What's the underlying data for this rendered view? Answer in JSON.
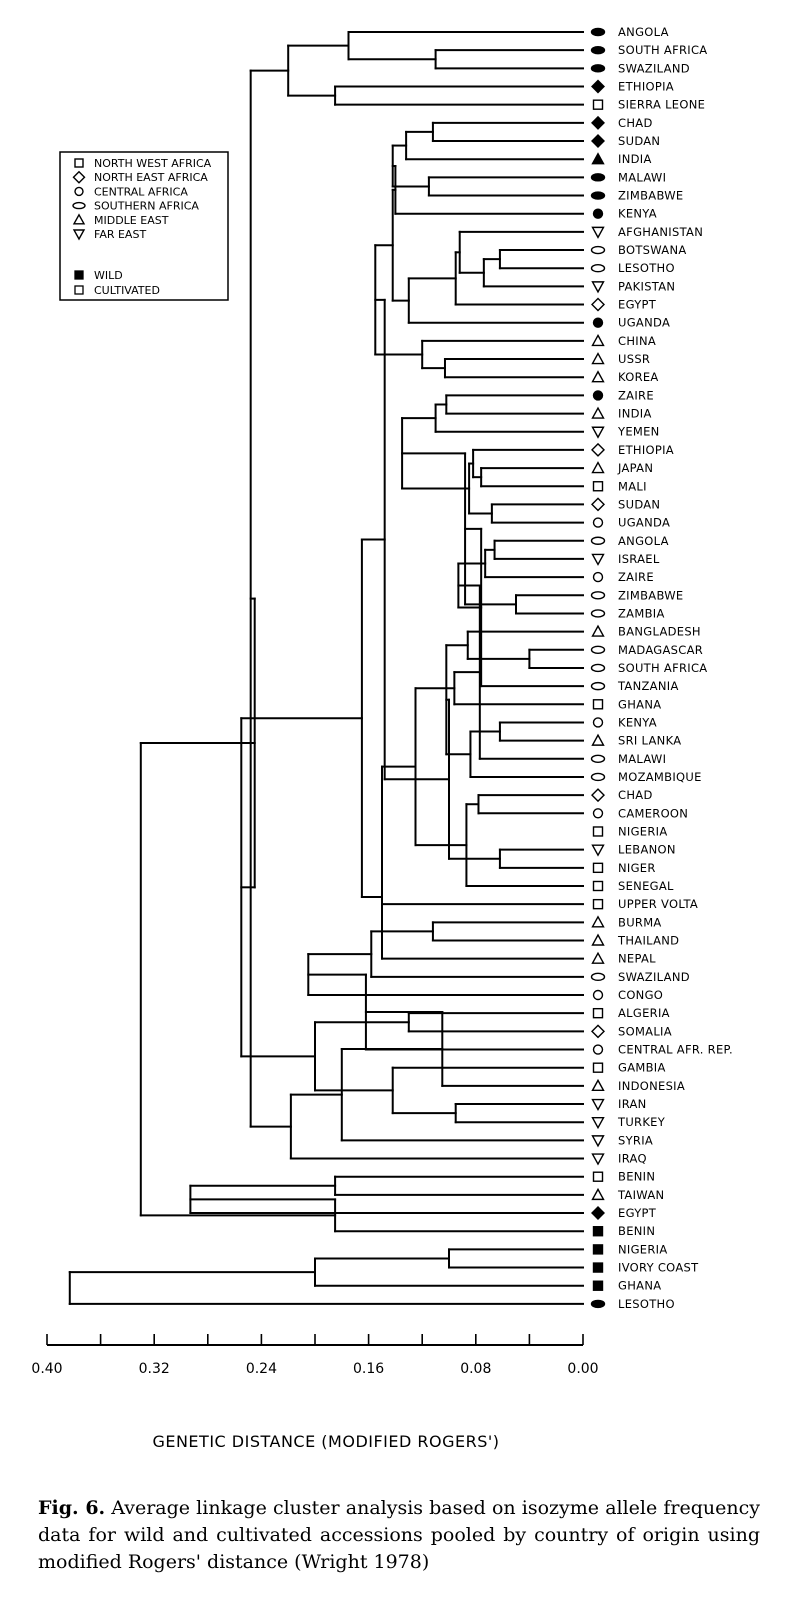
{
  "chart_data": {
    "type": "dendrogram",
    "xlabel": "GENETIC DISTANCE (MODIFIED ROGERS')",
    "xlim": [
      0.4,
      0.0
    ],
    "xticks": [
      "0.40",
      "0.32",
      "0.24",
      "0.16",
      "0.08",
      "0.00"
    ],
    "legend": {
      "regions": [
        {
          "label": "NORTH WEST AFRICA",
          "shape": "square"
        },
        {
          "label": "NORTH EAST AFRICA",
          "shape": "diamond"
        },
        {
          "label": "CENTRAL AFRICA",
          "shape": "circle"
        },
        {
          "label": "SOUTHERN AFRICA",
          "shape": "ellipse"
        },
        {
          "label": "MIDDLE EAST",
          "shape": "triangle-up"
        },
        {
          "label": "FAR EAST",
          "shape": "triangle-down"
        }
      ],
      "status": [
        {
          "label": "WILD",
          "fill": "filled"
        },
        {
          "label": "CULTIVATED",
          "fill": "open"
        }
      ]
    },
    "leaves": [
      {
        "label": "ANGOLA",
        "shape": "ellipse",
        "filled": true
      },
      {
        "label": "SOUTH AFRICA",
        "shape": "ellipse",
        "filled": true
      },
      {
        "label": "SWAZILAND",
        "shape": "ellipse",
        "filled": true
      },
      {
        "label": "ETHIOPIA",
        "shape": "diamond",
        "filled": true
      },
      {
        "label": "SIERRA LEONE",
        "shape": "square",
        "filled": false
      },
      {
        "label": "CHAD",
        "shape": "diamond",
        "filled": true
      },
      {
        "label": "SUDAN",
        "shape": "diamond",
        "filled": true
      },
      {
        "label": "INDIA",
        "shape": "triangle-up",
        "filled": true
      },
      {
        "label": "MALAWI",
        "shape": "ellipse",
        "filled": true
      },
      {
        "label": "ZIMBABWE",
        "shape": "ellipse",
        "filled": true
      },
      {
        "label": "KENYA",
        "shape": "circle",
        "filled": true
      },
      {
        "label": "AFGHANISTAN",
        "shape": "triangle-down",
        "filled": false
      },
      {
        "label": "BOTSWANA",
        "shape": "ellipse",
        "filled": false
      },
      {
        "label": "LESOTHO",
        "shape": "ellipse",
        "filled": false
      },
      {
        "label": "PAKISTAN",
        "shape": "triangle-down",
        "filled": false
      },
      {
        "label": "EGYPT",
        "shape": "diamond",
        "filled": false
      },
      {
        "label": "UGANDA",
        "shape": "circle",
        "filled": true
      },
      {
        "label": "CHINA",
        "shape": "triangle-up",
        "filled": false
      },
      {
        "label": "USSR",
        "shape": "triangle-up",
        "filled": false
      },
      {
        "label": "KOREA",
        "shape": "triangle-up",
        "filled": false
      },
      {
        "label": "ZAIRE",
        "shape": "circle",
        "filled": true
      },
      {
        "label": "INDIA",
        "shape": "triangle-up",
        "filled": false
      },
      {
        "label": "YEMEN",
        "shape": "triangle-down",
        "filled": false
      },
      {
        "label": "ETHIOPIA",
        "shape": "diamond",
        "filled": false
      },
      {
        "label": "JAPAN",
        "shape": "triangle-up",
        "filled": false
      },
      {
        "label": "MALI",
        "shape": "square",
        "filled": false
      },
      {
        "label": "SUDAN",
        "shape": "diamond",
        "filled": false
      },
      {
        "label": "UGANDA",
        "shape": "circle",
        "filled": false
      },
      {
        "label": "ANGOLA",
        "shape": "ellipse",
        "filled": false
      },
      {
        "label": "ISRAEL",
        "shape": "triangle-down",
        "filled": false
      },
      {
        "label": "ZAIRE",
        "shape": "circle",
        "filled": false
      },
      {
        "label": "ZIMBABWE",
        "shape": "ellipse",
        "filled": false
      },
      {
        "label": "ZAMBIA",
        "shape": "ellipse",
        "filled": false
      },
      {
        "label": "BANGLADESH",
        "shape": "triangle-up",
        "filled": false
      },
      {
        "label": "MADAGASCAR",
        "shape": "ellipse",
        "filled": false
      },
      {
        "label": "SOUTH AFRICA",
        "shape": "ellipse",
        "filled": false
      },
      {
        "label": "TANZANIA",
        "shape": "ellipse",
        "filled": false
      },
      {
        "label": "GHANA",
        "shape": "square",
        "filled": false
      },
      {
        "label": "KENYA",
        "shape": "circle",
        "filled": false
      },
      {
        "label": "SRI LANKA",
        "shape": "triangle-up",
        "filled": false
      },
      {
        "label": "MALAWI",
        "shape": "ellipse",
        "filled": false
      },
      {
        "label": "MOZAMBIQUE",
        "shape": "ellipse",
        "filled": false
      },
      {
        "label": "CHAD",
        "shape": "diamond",
        "filled": false
      },
      {
        "label": "CAMEROON",
        "shape": "circle",
        "filled": false
      },
      {
        "label": "NIGERIA",
        "shape": "square",
        "filled": false
      },
      {
        "label": "LEBANON",
        "shape": "triangle-down",
        "filled": false
      },
      {
        "label": "NIGER",
        "shape": "square",
        "filled": false
      },
      {
        "label": "SENEGAL",
        "shape": "square",
        "filled": false
      },
      {
        "label": "UPPER VOLTA",
        "shape": "square",
        "filled": false
      },
      {
        "label": "BURMA",
        "shape": "triangle-up",
        "filled": false
      },
      {
        "label": "THAILAND",
        "shape": "triangle-up",
        "filled": false
      },
      {
        "label": "NEPAL",
        "shape": "triangle-up",
        "filled": false
      },
      {
        "label": "SWAZILAND",
        "shape": "ellipse",
        "filled": false
      },
      {
        "label": "CONGO",
        "shape": "circle",
        "filled": false
      },
      {
        "label": "ALGERIA",
        "shape": "square",
        "filled": false
      },
      {
        "label": "SOMALIA",
        "shape": "diamond",
        "filled": false
      },
      {
        "label": "CENTRAL AFR. REP.",
        "shape": "circle",
        "filled": false
      },
      {
        "label": "GAMBIA",
        "shape": "square",
        "filled": false
      },
      {
        "label": "INDONESIA",
        "shape": "triangle-up",
        "filled": false
      },
      {
        "label": "IRAN",
        "shape": "triangle-down",
        "filled": false
      },
      {
        "label": "TURKEY",
        "shape": "triangle-down",
        "filled": false
      },
      {
        "label": "SYRIA",
        "shape": "triangle-down",
        "filled": false
      },
      {
        "label": "IRAQ",
        "shape": "triangle-down",
        "filled": false
      },
      {
        "label": "BENIN",
        "shape": "square",
        "filled": false
      },
      {
        "label": "TAIWAN",
        "shape": "triangle-up",
        "filled": false
      },
      {
        "label": "EGYPT",
        "shape": "diamond",
        "filled": true
      },
      {
        "label": "BENIN",
        "shape": "square",
        "filled": true
      },
      {
        "label": "NIGERIA",
        "shape": "square",
        "filled": true
      },
      {
        "label": "IVORY COAST",
        "shape": "square",
        "filled": true
      },
      {
        "label": "GHANA",
        "shape": "square",
        "filled": true
      },
      {
        "label": "LESOTHO",
        "shape": "ellipse",
        "filled": true
      }
    ],
    "merges": [
      {
        "children": [
          "L1",
          "L2"
        ],
        "height": 0.11
      },
      {
        "children": [
          "N1",
          "L0"
        ],
        "height": 0.175
      },
      {
        "children": [
          "L3",
          "L4"
        ],
        "height": 0.185
      },
      {
        "children": [
          "N2",
          "N3"
        ],
        "height": 0.22
      },
      {
        "children": [
          "L5",
          "L6"
        ],
        "height": 0.112
      },
      {
        "children": [
          "N5",
          "L7"
        ],
        "height": 0.132
      },
      {
        "children": [
          "L8",
          "L9"
        ],
        "height": 0.115
      },
      {
        "children": [
          "N6",
          "N7"
        ],
        "height": 0.142
      },
      {
        "children": [
          "N8",
          "L10"
        ],
        "height": 0.14
      },
      {
        "children": [
          "L12",
          "L13"
        ],
        "height": 0.062
      },
      {
        "children": [
          "N10",
          "L14"
        ],
        "height": 0.074
      },
      {
        "children": [
          "N11",
          "L11"
        ],
        "height": 0.092
      },
      {
        "children": [
          "N12",
          "L15"
        ],
        "height": 0.095
      },
      {
        "children": [
          "N13",
          "L16"
        ],
        "height": 0.13
      },
      {
        "children": [
          "N9",
          "N14"
        ],
        "height": 0.142
      },
      {
        "children": [
          "L18",
          "L19"
        ],
        "height": 0.103
      },
      {
        "children": [
          "N16",
          "L17"
        ],
        "height": 0.12
      },
      {
        "children": [
          "N15",
          "N17"
        ],
        "height": 0.155
      },
      {
        "children": [
          "L20",
          "L21"
        ],
        "height": 0.102
      },
      {
        "children": [
          "N19",
          "L22"
        ],
        "height": 0.11
      },
      {
        "children": [
          "L24",
          "L25"
        ],
        "height": 0.076
      },
      {
        "children": [
          "N21",
          "L23"
        ],
        "height": 0.082
      },
      {
        "children": [
          "L26",
          "L27"
        ],
        "height": 0.068
      },
      {
        "children": [
          "N22",
          "N23"
        ],
        "height": 0.085
      },
      {
        "children": [
          "N20",
          "N24"
        ],
        "height": 0.135
      },
      {
        "children": [
          "L28",
          "L29"
        ],
        "height": 0.066
      },
      {
        "children": [
          "L31",
          "L32"
        ],
        "height": 0.05
      },
      {
        "children": [
          "N26",
          "L30"
        ],
        "height": 0.073
      },
      {
        "children": [
          "N25",
          "N27"
        ],
        "height": 0.088
      },
      {
        "children": [
          "L34",
          "L35"
        ],
        "height": 0.04
      },
      {
        "children": [
          "N29",
          "L36"
        ],
        "height": 0.076
      },
      {
        "children": [
          "N30",
          "L33"
        ],
        "height": 0.086
      },
      {
        "children": [
          "N28",
          "N31"
        ],
        "height": 0.093
      },
      {
        "children": [
          "L38",
          "L39"
        ],
        "height": 0.062
      },
      {
        "children": [
          "N33",
          "L40"
        ],
        "height": 0.077
      },
      {
        "children": [
          "N34",
          "L41"
        ],
        "height": 0.084
      },
      {
        "children": [
          "N35",
          "L37"
        ],
        "height": 0.096
      },
      {
        "children": [
          "N32",
          "N36"
        ],
        "height": 0.102
      },
      {
        "children": [
          "L42",
          "L43"
        ],
        "height": 0.078
      },
      {
        "children": [
          "L45",
          "L46"
        ],
        "height": 0.062
      },
      {
        "children": [
          "N39",
          "L47"
        ],
        "height": 0.087
      },
      {
        "children": [
          "N38",
          "N40"
        ],
        "height": 0.1
      },
      {
        "children": [
          "N37",
          "N41"
        ],
        "height": 0.125
      },
      {
        "children": [
          "N18",
          "N42"
        ],
        "height": 0.148
      },
      {
        "children": [
          "N43",
          "L48"
        ],
        "height": 0.15
      },
      {
        "children": [
          "L49",
          "L50"
        ],
        "height": 0.112
      },
      {
        "children": [
          "N45",
          "L51"
        ],
        "height": 0.15
      },
      {
        "children": [
          "N46",
          "L52"
        ],
        "height": 0.158
      },
      {
        "children": [
          "N44",
          "N47"
        ],
        "height": 0.165
      },
      {
        "children": [
          "N48",
          "L53"
        ],
        "height": 0.205
      },
      {
        "children": [
          "L54",
          "L55"
        ],
        "height": 0.13
      },
      {
        "children": [
          "N50",
          "L56"
        ],
        "height": 0.162
      },
      {
        "children": [
          "L59",
          "L60"
        ],
        "height": 0.095
      },
      {
        "children": [
          "N52",
          "L58"
        ],
        "height": 0.105
      },
      {
        "children": [
          "N53",
          "L57"
        ],
        "height": 0.142
      },
      {
        "children": [
          "N54",
          "L61"
        ],
        "height": 0.18
      },
      {
        "children": [
          "N51",
          "N55"
        ],
        "height": 0.2
      },
      {
        "children": [
          "N56",
          "L62"
        ],
        "height": 0.218
      },
      {
        "children": [
          "N49",
          "N57"
        ],
        "height": 0.255
      },
      {
        "children": [
          "N4",
          "N58"
        ],
        "height": 0.248
      },
      {
        "children": [
          "L63",
          "L64"
        ],
        "height": 0.185
      },
      {
        "children": [
          "N59",
          "N60"
        ],
        "height": 0.245
      },
      {
        "children": [
          "N61",
          "L65"
        ],
        "height": 0.293
      },
      {
        "children": [
          "L67",
          "L68"
        ],
        "height": 0.1
      },
      {
        "children": [
          "N63",
          "L66"
        ],
        "height": 0.185
      },
      {
        "children": [
          "N64",
          "L69"
        ],
        "height": 0.2
      },
      {
        "children": [
          "N62",
          "N65"
        ],
        "height": 0.33
      },
      {
        "children": [
          "N66",
          "L70"
        ],
        "height": 0.383
      }
    ]
  },
  "caption": {
    "label": "Fig. 6.",
    "text": "Average linkage cluster analysis based on isozyme allele frequency data for wild and cultivated accessions pooled by country of origin using modified Rogers' distance (Wright 1978)"
  }
}
